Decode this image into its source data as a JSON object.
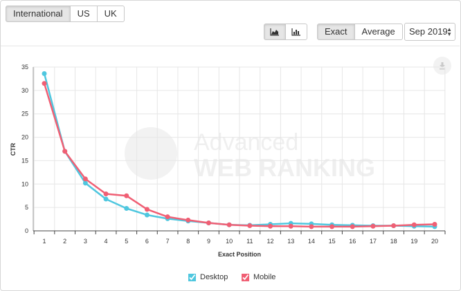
{
  "region_tabs": [
    {
      "label": "International",
      "active": true
    },
    {
      "label": "US",
      "active": false
    },
    {
      "label": "UK",
      "active": false
    }
  ],
  "view_toggle": {
    "area_icon": "area-chart-icon",
    "bar_icon": "bar-chart-icon",
    "active": "area"
  },
  "mode_toggle": {
    "exact_label": "Exact",
    "average_label": "Average",
    "active": "Exact"
  },
  "date_select": {
    "value": "Sep 2019"
  },
  "download_icon": "download-icon",
  "watermark": {
    "line1": "Advanced",
    "line2": "WEB RANKING"
  },
  "colors": {
    "desktop": "#4fc7df",
    "mobile": "#f05f74",
    "grid": "#e6e6e6",
    "axis": "#333333"
  },
  "chart_data": {
    "type": "line",
    "xlabel": "Exact Position",
    "ylabel": "CTR",
    "x": [
      1,
      2,
      3,
      4,
      5,
      6,
      7,
      8,
      9,
      10,
      11,
      12,
      13,
      14,
      15,
      16,
      17,
      18,
      19,
      20
    ],
    "ylim": [
      0,
      35
    ],
    "yticks": [
      0,
      5,
      10,
      15,
      20,
      25,
      30,
      35
    ],
    "grid": true,
    "legend_position": "bottom-center",
    "series": [
      {
        "name": "Desktop",
        "color": "#4fc7df",
        "values": [
          33.6,
          17.0,
          10.2,
          6.8,
          4.8,
          3.4,
          2.6,
          2.1,
          1.7,
          1.3,
          1.2,
          1.4,
          1.6,
          1.5,
          1.3,
          1.2,
          1.1,
          1.1,
          1.0,
          0.9
        ]
      },
      {
        "name": "Mobile",
        "color": "#f05f74",
        "values": [
          31.5,
          17.0,
          11.1,
          7.9,
          7.5,
          4.6,
          3.0,
          2.3,
          1.7,
          1.3,
          1.1,
          1.0,
          1.0,
          0.9,
          0.9,
          0.9,
          1.0,
          1.1,
          1.3,
          1.4
        ]
      }
    ]
  }
}
